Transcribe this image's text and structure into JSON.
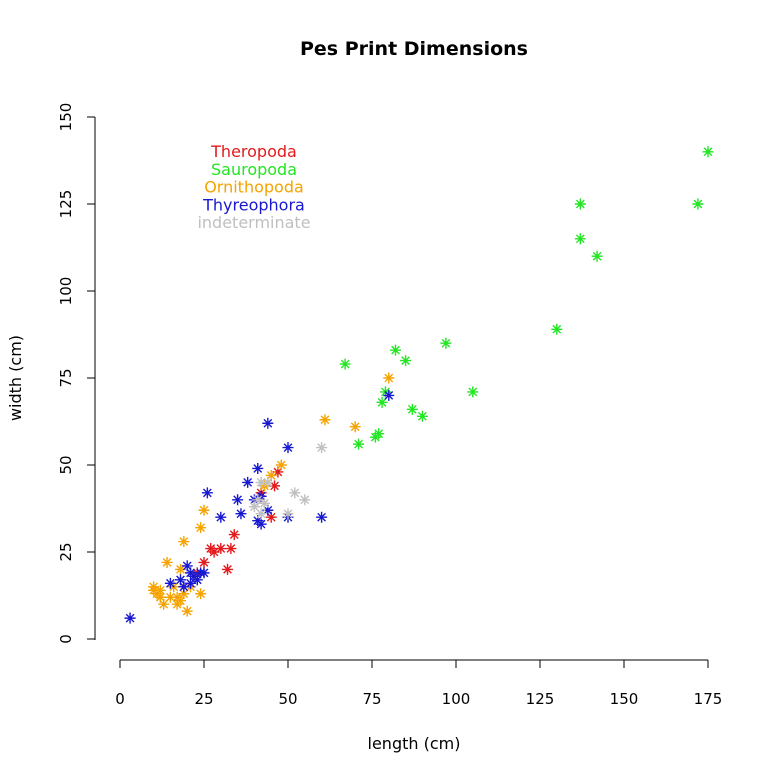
{
  "chart_data": {
    "type": "scatter",
    "title": "Pes Print Dimensions",
    "xlabel": "length (cm)",
    "ylabel": "width (cm)",
    "xlim": [
      0,
      175
    ],
    "ylim": [
      0,
      150
    ],
    "x_ticks": [
      "0",
      "25",
      "50",
      "75",
      "100",
      "125",
      "150",
      "175"
    ],
    "y_ticks": [
      "0",
      "25",
      "50",
      "75",
      "100",
      "125",
      "150"
    ],
    "marker": "asterisk",
    "grid": false,
    "legend_position": "top-left",
    "series": [
      {
        "name": "Theropoda",
        "color": "#e31a1c",
        "points": [
          [
            19,
            15
          ],
          [
            22,
            18
          ],
          [
            23,
            19
          ],
          [
            25,
            22
          ],
          [
            27,
            26
          ],
          [
            28,
            25
          ],
          [
            30,
            26
          ],
          [
            32,
            20
          ],
          [
            33,
            26
          ],
          [
            34,
            30
          ],
          [
            41,
            40
          ],
          [
            42,
            42
          ],
          [
            45,
            35
          ],
          [
            46,
            44
          ],
          [
            47,
            48
          ]
        ]
      },
      {
        "name": "Sauropoda",
        "color": "#22e622",
        "points": [
          [
            67,
            79
          ],
          [
            71,
            56
          ],
          [
            76,
            58
          ],
          [
            77,
            59
          ],
          [
            78,
            68
          ],
          [
            79,
            71
          ],
          [
            82,
            83
          ],
          [
            85,
            80
          ],
          [
            87,
            66
          ],
          [
            90,
            64
          ],
          [
            97,
            85
          ],
          [
            105,
            71
          ],
          [
            130,
            89
          ],
          [
            137,
            115
          ],
          [
            137,
            125
          ],
          [
            142,
            110
          ],
          [
            172,
            125
          ],
          [
            175,
            140
          ]
        ]
      },
      {
        "name": "Ornithopoda",
        "color": "#f5a300",
        "points": [
          [
            10,
            14
          ],
          [
            10,
            15
          ],
          [
            11,
            13
          ],
          [
            12,
            12
          ],
          [
            12,
            14
          ],
          [
            13,
            10
          ],
          [
            14,
            22
          ],
          [
            15,
            12
          ],
          [
            16,
            15
          ],
          [
            17,
            10
          ],
          [
            17,
            12
          ],
          [
            18,
            20
          ],
          [
            18,
            11
          ],
          [
            19,
            28
          ],
          [
            19,
            13
          ],
          [
            20,
            8
          ],
          [
            21,
            15
          ],
          [
            24,
            13
          ],
          [
            24,
            32
          ],
          [
            25,
            37
          ],
          [
            43,
            44
          ],
          [
            45,
            47
          ],
          [
            48,
            50
          ],
          [
            61,
            63
          ],
          [
            70,
            61
          ],
          [
            80,
            75
          ]
        ]
      },
      {
        "name": "Thyreophora",
        "color": "#1818d2",
        "points": [
          [
            3,
            6
          ],
          [
            15,
            16
          ],
          [
            18,
            17
          ],
          [
            19,
            15
          ],
          [
            20,
            21
          ],
          [
            21,
            16
          ],
          [
            21,
            19
          ],
          [
            22,
            18
          ],
          [
            23,
            17
          ],
          [
            24,
            19
          ],
          [
            25,
            19
          ],
          [
            26,
            42
          ],
          [
            30,
            35
          ],
          [
            35,
            40
          ],
          [
            36,
            36
          ],
          [
            38,
            45
          ],
          [
            40,
            40
          ],
          [
            41,
            34
          ],
          [
            41,
            49
          ],
          [
            42,
            33
          ],
          [
            42,
            41
          ],
          [
            44,
            37
          ],
          [
            44,
            62
          ],
          [
            50,
            35
          ],
          [
            50,
            55
          ],
          [
            60,
            35
          ],
          [
            80,
            70
          ]
        ]
      },
      {
        "name": "indeterminate",
        "color": "#c0c0c0",
        "points": [
          [
            40,
            38
          ],
          [
            41,
            40
          ],
          [
            42,
            36
          ],
          [
            42,
            45
          ],
          [
            43,
            39
          ],
          [
            44,
            45
          ],
          [
            50,
            36
          ],
          [
            52,
            42
          ],
          [
            55,
            40
          ],
          [
            60,
            55
          ]
        ]
      }
    ]
  }
}
